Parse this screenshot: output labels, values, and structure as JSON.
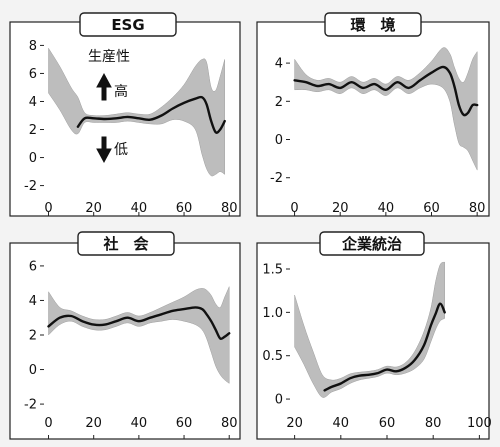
{
  "chart_data": [
    {
      "type": "line",
      "title": "ESG",
      "xlabel": "",
      "ylabel": "",
      "xlim": [
        -2,
        83
      ],
      "ylim": [
        -2.6,
        8.6
      ],
      "x_ticks": [
        0,
        20,
        40,
        60,
        80
      ],
      "y_ticks": [
        -2,
        0,
        2,
        4,
        6,
        8
      ],
      "series": [
        {
          "x": [
            13,
            16,
            20,
            25,
            30,
            35,
            40,
            45,
            50,
            55,
            60,
            65,
            68,
            70,
            72,
            74,
            76,
            78
          ],
          "y": [
            2.2,
            2.8,
            2.8,
            2.75,
            2.8,
            2.9,
            2.8,
            2.7,
            3.0,
            3.5,
            3.9,
            4.2,
            4.3,
            3.8,
            2.6,
            1.8,
            2.0,
            2.6
          ]
        }
      ],
      "band": {
        "x": [
          0,
          5,
          10,
          13,
          16,
          20,
          25,
          30,
          35,
          40,
          45,
          50,
          55,
          60,
          65,
          68,
          70,
          72,
          74,
          76,
          78
        ],
        "upper": [
          7.8,
          6.5,
          5.0,
          4.3,
          3.2,
          3.0,
          3.0,
          3.1,
          3.2,
          3.1,
          3.1,
          3.6,
          4.3,
          5.2,
          6.5,
          7.0,
          6.8,
          5.0,
          4.8,
          5.8,
          7.0
        ],
        "lower": [
          4.6,
          3.4,
          2.0,
          1.7,
          2.5,
          2.5,
          2.5,
          2.5,
          2.6,
          2.5,
          2.4,
          2.4,
          2.7,
          2.6,
          2.0,
          0.2,
          -0.8,
          -1.3,
          -1.2,
          -1.0,
          -1.2
        ]
      },
      "annotation": {
        "label": "生産性",
        "high": "高",
        "low": "低"
      }
    },
    {
      "type": "line",
      "title": "環　境",
      "xlabel": "",
      "ylabel": "",
      "xlim": [
        -2,
        83
      ],
      "ylim": [
        -2.8,
        5.0
      ],
      "x_ticks": [
        0,
        20,
        40,
        60,
        80
      ],
      "y_ticks": [
        -2,
        0,
        2,
        4
      ],
      "series": [
        {
          "x": [
            0,
            5,
            10,
            15,
            20,
            25,
            30,
            35,
            40,
            45,
            50,
            55,
            60,
            65,
            68,
            70,
            72,
            74,
            76,
            78,
            80
          ],
          "y": [
            3.1,
            3.0,
            2.8,
            2.9,
            2.7,
            3.0,
            2.7,
            2.9,
            2.6,
            3.0,
            2.7,
            3.1,
            3.5,
            3.8,
            3.5,
            2.8,
            1.8,
            1.3,
            1.4,
            1.8,
            1.8
          ]
        }
      ],
      "band": {
        "x": [
          0,
          5,
          10,
          15,
          20,
          25,
          30,
          35,
          40,
          45,
          50,
          55,
          60,
          65,
          68,
          70,
          72,
          74,
          76,
          78,
          80
        ],
        "upper": [
          4.2,
          3.4,
          3.1,
          3.2,
          3.0,
          3.3,
          3.0,
          3.2,
          2.9,
          3.3,
          3.1,
          3.5,
          4.1,
          4.8,
          4.5,
          3.8,
          3.2,
          3.0,
          3.5,
          4.2,
          4.6
        ],
        "lower": [
          2.6,
          2.6,
          2.5,
          2.6,
          2.4,
          2.7,
          2.4,
          2.6,
          2.3,
          2.7,
          2.4,
          2.7,
          2.9,
          2.7,
          2.0,
          0.8,
          -0.2,
          -0.4,
          -0.6,
          -1.1,
          -1.6
        ]
      }
    },
    {
      "type": "line",
      "title": "社　会",
      "xlabel": "",
      "ylabel": "",
      "xlim": [
        -2,
        83
      ],
      "ylim": [
        -2.4,
        6.4
      ],
      "x_ticks": [
        0,
        20,
        40,
        60,
        80
      ],
      "y_ticks": [
        -2,
        0,
        2,
        4,
        6
      ],
      "series": [
        {
          "x": [
            0,
            5,
            10,
            15,
            20,
            25,
            30,
            35,
            40,
            45,
            50,
            55,
            60,
            65,
            68,
            70,
            72,
            74,
            76,
            78,
            80
          ],
          "y": [
            2.5,
            3.0,
            3.1,
            2.8,
            2.6,
            2.6,
            2.8,
            3.0,
            2.8,
            3.0,
            3.2,
            3.4,
            3.5,
            3.6,
            3.5,
            3.2,
            2.8,
            2.3,
            1.8,
            1.9,
            2.1
          ]
        }
      ],
      "band": {
        "x": [
          0,
          5,
          10,
          15,
          20,
          25,
          30,
          35,
          40,
          45,
          50,
          55,
          60,
          65,
          68,
          70,
          72,
          74,
          76,
          78,
          80
        ],
        "upper": [
          4.5,
          3.6,
          3.4,
          3.1,
          2.9,
          2.9,
          3.1,
          3.3,
          3.1,
          3.3,
          3.6,
          3.9,
          4.2,
          4.6,
          4.7,
          4.6,
          4.3,
          3.8,
          3.6,
          4.2,
          4.8
        ],
        "lower": [
          2.0,
          2.6,
          2.8,
          2.5,
          2.3,
          2.3,
          2.5,
          2.7,
          2.5,
          2.7,
          2.8,
          2.9,
          2.8,
          2.6,
          2.3,
          1.8,
          1.0,
          0.2,
          -0.3,
          -0.6,
          -0.8
        ]
      }
    },
    {
      "type": "line",
      "title": "企業統治",
      "xlabel": "",
      "ylabel": "",
      "xlim": [
        18,
        102
      ],
      "ylim": [
        -0.08,
        1.65
      ],
      "x_ticks": [
        20,
        40,
        60,
        80,
        100
      ],
      "y_ticks": [
        0,
        0.5,
        1.0,
        1.5
      ],
      "y_tick_labels": [
        "0",
        "0.5",
        "1.0",
        "1.5"
      ],
      "series": [
        {
          "x": [
            33,
            36,
            40,
            44,
            48,
            52,
            56,
            60,
            64,
            68,
            72,
            76,
            79,
            81,
            83,
            85
          ],
          "y": [
            0.1,
            0.14,
            0.18,
            0.24,
            0.27,
            0.28,
            0.3,
            0.34,
            0.32,
            0.36,
            0.45,
            0.62,
            0.85,
            0.98,
            1.1,
            1.0
          ]
        }
      ],
      "band": {
        "x": [
          20,
          24,
          28,
          32,
          36,
          40,
          44,
          48,
          52,
          56,
          60,
          64,
          68,
          72,
          76,
          79,
          81,
          83,
          85
        ],
        "upper": [
          1.2,
          0.85,
          0.55,
          0.28,
          0.22,
          0.24,
          0.29,
          0.31,
          0.32,
          0.34,
          0.38,
          0.37,
          0.42,
          0.55,
          0.78,
          1.05,
          1.35,
          1.55,
          1.58
        ],
        "lower": [
          0.6,
          0.4,
          0.18,
          0.02,
          0.08,
          0.12,
          0.18,
          0.22,
          0.24,
          0.26,
          0.3,
          0.28,
          0.3,
          0.35,
          0.46,
          0.66,
          0.8,
          0.9,
          0.93
        ]
      }
    }
  ]
}
